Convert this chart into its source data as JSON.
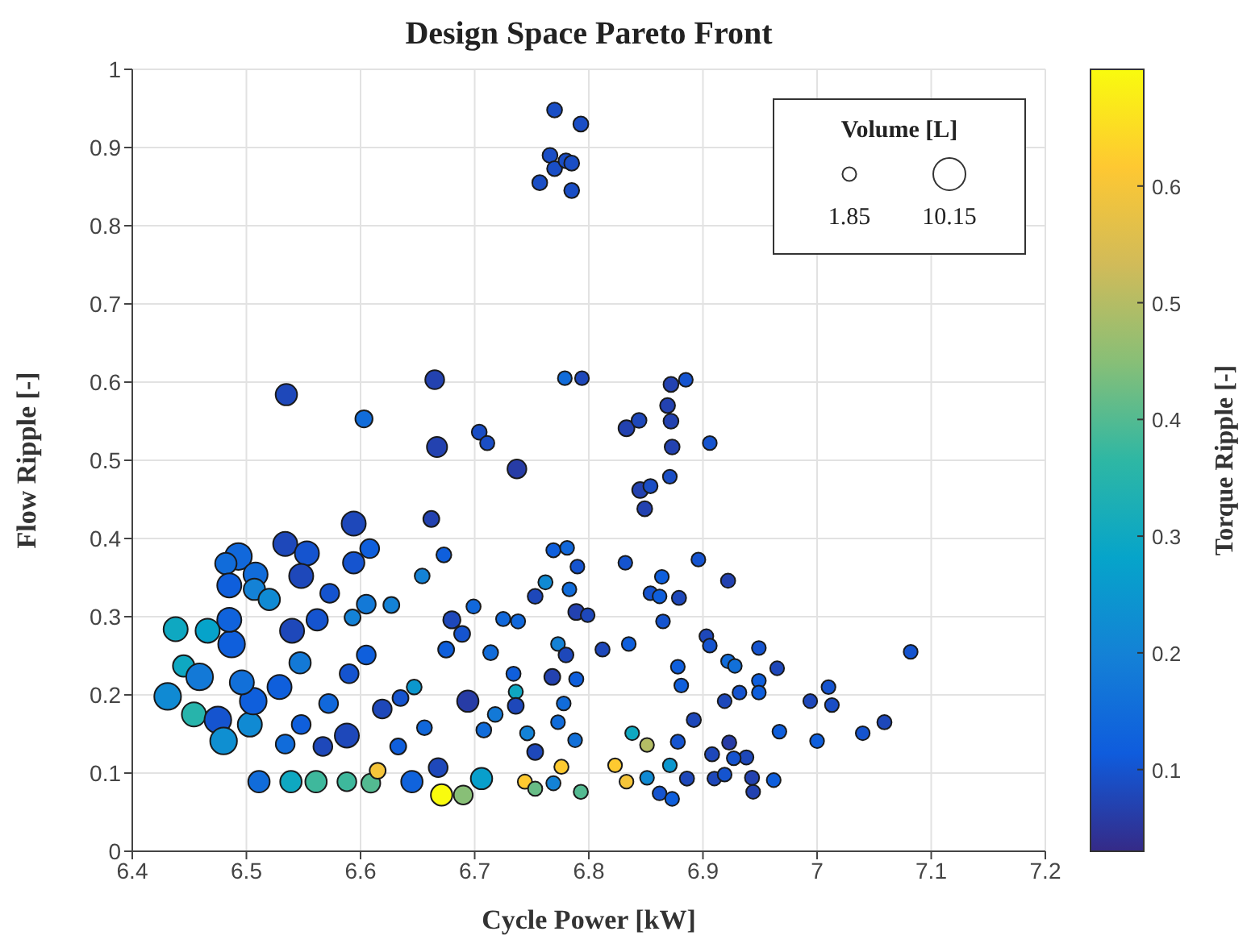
{
  "chart_data": {
    "type": "bubble",
    "title": "Design Space Pareto Front",
    "xlabel": "Cycle Power [kW]",
    "ylabel": "Flow Ripple [-]",
    "clabel": "Torque Ripple [-]",
    "legend_title": "Volume [L]",
    "x": [
      6.77,
      6.793,
      6.766,
      6.77,
      6.78,
      6.785,
      6.757,
      6.785,
      6.535,
      6.603,
      6.665,
      6.667,
      6.704,
      6.711,
      6.737,
      6.594,
      6.662,
      6.673,
      6.608,
      6.594,
      6.534,
      6.553,
      6.493,
      6.482,
      6.548,
      6.508,
      6.485,
      6.507,
      6.52,
      6.573,
      6.654,
      6.627,
      6.605,
      6.593,
      6.438,
      6.466,
      6.445,
      6.459,
      6.431,
      6.454,
      6.475,
      6.48,
      6.503,
      6.506,
      6.496,
      6.487,
      6.485,
      6.54,
      6.562,
      6.547,
      6.529,
      6.511,
      6.539,
      6.561,
      6.588,
      6.609,
      6.615,
      6.645,
      6.671,
      6.69,
      6.706,
      6.668,
      6.588,
      6.572,
      6.59,
      6.605,
      6.619,
      6.635,
      6.647,
      6.694,
      6.675,
      6.689,
      6.68,
      6.699,
      6.725,
      6.738,
      6.714,
      6.734,
      6.736,
      6.736,
      6.718,
      6.746,
      6.753,
      6.708,
      6.656,
      6.633,
      6.567,
      6.548,
      6.534,
      6.753,
      6.769,
      6.781,
      6.762,
      6.79,
      6.783,
      6.773,
      6.78,
      6.789,
      6.799,
      6.768,
      6.789,
      6.778,
      6.773,
      6.788,
      6.776,
      6.744,
      6.753,
      6.769,
      6.793,
      6.779,
      6.794,
      6.812,
      6.872,
      6.885,
      6.869,
      6.872,
      6.833,
      6.844,
      6.873,
      6.906,
      6.871,
      6.845,
      6.854,
      6.849,
      6.832,
      6.896,
      6.864,
      6.854,
      6.862,
      6.879,
      6.922,
      6.865,
      6.835,
      6.903,
      6.906,
      6.949,
      6.922,
      6.928,
      6.878,
      6.881,
      6.965,
      6.949,
      6.949,
      6.932,
      6.919,
      7.082,
      6.994,
      7.01,
      7.013,
      7.059,
      7.04,
      7.0,
      6.967,
      6.892,
      6.878,
      6.923,
      6.908,
      6.938,
      6.927,
      6.886,
      6.91,
      6.919,
      6.943,
      6.944,
      6.962,
      6.862,
      6.873,
      6.851,
      6.838,
      6.871,
      6.851,
      6.833,
      6.823
    ],
    "values": [
      0.948,
      0.93,
      0.89,
      0.873,
      0.883,
      0.88,
      0.855,
      0.845,
      0.584,
      0.553,
      0.603,
      0.517,
      0.536,
      0.522,
      0.489,
      0.419,
      0.425,
      0.379,
      0.387,
      0.369,
      0.393,
      0.381,
      0.377,
      0.368,
      0.352,
      0.354,
      0.34,
      0.335,
      0.322,
      0.33,
      0.352,
      0.315,
      0.316,
      0.299,
      0.284,
      0.282,
      0.237,
      0.223,
      0.198,
      0.175,
      0.168,
      0.141,
      0.162,
      0.192,
      0.216,
      0.265,
      0.296,
      0.282,
      0.296,
      0.241,
      0.21,
      0.089,
      0.089,
      0.089,
      0.089,
      0.087,
      0.103,
      0.089,
      0.072,
      0.072,
      0.093,
      0.107,
      0.148,
      0.189,
      0.227,
      0.251,
      0.182,
      0.196,
      0.21,
      0.192,
      0.258,
      0.278,
      0.296,
      0.313,
      0.297,
      0.294,
      0.254,
      0.227,
      0.204,
      0.186,
      0.175,
      0.151,
      0.127,
      0.155,
      0.158,
      0.134,
      0.134,
      0.162,
      0.137,
      0.326,
      0.385,
      0.388,
      0.344,
      0.364,
      0.335,
      0.265,
      0.251,
      0.306,
      0.302,
      0.223,
      0.22,
      0.189,
      0.165,
      0.142,
      0.108,
      0.089,
      0.08,
      0.087,
      0.076,
      0.605,
      0.605,
      0.258,
      0.597,
      0.603,
      0.57,
      0.55,
      0.541,
      0.551,
      0.517,
      0.522,
      0.479,
      0.462,
      0.467,
      0.438,
      0.369,
      0.373,
      0.351,
      0.33,
      0.326,
      0.324,
      0.346,
      0.294,
      0.265,
      0.275,
      0.263,
      0.26,
      0.243,
      0.237,
      0.236,
      0.212,
      0.234,
      0.218,
      0.203,
      0.203,
      0.192,
      0.255,
      0.192,
      0.21,
      0.187,
      0.165,
      0.151,
      0.141,
      0.153,
      0.168,
      0.14,
      0.139,
      0.124,
      0.12,
      0.119,
      0.093,
      0.093,
      0.098,
      0.094,
      0.076,
      0.091,
      0.074,
      0.067,
      0.136,
      0.151,
      0.11,
      0.094,
      0.089,
      0.11
    ],
    "sizes": [
      2.2,
      2.2,
      2.2,
      2.2,
      2.2,
      2.2,
      2.2,
      2.2,
      4.5,
      2.9,
      3.5,
      4.0,
      2.2,
      2.0,
      3.5,
      5.7,
      2.5,
      2.2,
      3.5,
      4.5,
      5.7,
      5.7,
      7.0,
      4.5,
      5.7,
      5.7,
      5.7,
      4.5,
      4.5,
      3.5,
      2.2,
      2.5,
      3.5,
      2.5,
      5.7,
      5.7,
      4.5,
      7.0,
      7.0,
      5.7,
      7.0,
      7.0,
      5.7,
      7.0,
      5.7,
      7.0,
      5.7,
      5.7,
      4.5,
      4.5,
      5.7,
      4.5,
      4.5,
      4.5,
      3.5,
      3.5,
      2.5,
      4.5,
      4.5,
      3.5,
      4.5,
      3.5,
      5.7,
      3.5,
      3.5,
      3.5,
      3.5,
      2.5,
      2.2,
      4.5,
      2.5,
      2.5,
      2.9,
      2.0,
      2.0,
      2.0,
      2.2,
      2.0,
      2.0,
      2.5,
      2.2,
      2.0,
      2.5,
      2.2,
      2.2,
      2.5,
      3.5,
      3.5,
      3.5,
      2.2,
      2.0,
      1.9,
      2.0,
      1.9,
      1.9,
      1.9,
      2.2,
      2.5,
      1.9,
      2.5,
      2.0,
      1.9,
      1.9,
      1.9,
      2.0,
      2.0,
      2.0,
      2.0,
      2.0,
      1.9,
      1.9,
      2.0,
      2.2,
      1.9,
      2.2,
      2.2,
      2.5,
      2.2,
      2.2,
      1.9,
      1.9,
      2.5,
      2.0,
      2.2,
      1.9,
      1.9,
      1.9,
      1.9,
      1.9,
      2.0,
      2.0,
      1.9,
      1.9,
      1.9,
      1.9,
      1.9,
      1.9,
      1.85,
      1.9,
      1.9,
      1.9,
      1.9,
      1.9,
      1.9,
      1.9,
      1.9,
      1.9,
      1.9,
      1.9,
      2.0,
      1.9,
      1.9,
      1.9,
      2.0,
      2.0,
      2.0,
      2.0,
      2.0,
      1.9,
      2.0,
      1.9,
      1.9,
      2.0,
      1.9,
      1.9,
      1.9,
      1.9,
      1.9,
      1.9,
      1.9,
      1.9,
      1.9,
      1.9
    ],
    "cvalues": [
      0.09,
      0.09,
      0.09,
      0.09,
      0.09,
      0.09,
      0.09,
      0.09,
      0.08,
      0.15,
      0.07,
      0.07,
      0.09,
      0.09,
      0.06,
      0.08,
      0.07,
      0.12,
      0.12,
      0.1,
      0.08,
      0.1,
      0.14,
      0.15,
      0.08,
      0.15,
      0.12,
      0.2,
      0.22,
      0.1,
      0.2,
      0.2,
      0.18,
      0.2,
      0.3,
      0.28,
      0.3,
      0.18,
      0.22,
      0.35,
      0.1,
      0.23,
      0.22,
      0.12,
      0.16,
      0.12,
      0.13,
      0.08,
      0.1,
      0.18,
      0.12,
      0.15,
      0.3,
      0.38,
      0.38,
      0.4,
      0.6,
      0.13,
      0.7,
      0.45,
      0.27,
      0.08,
      0.08,
      0.14,
      0.1,
      0.12,
      0.08,
      0.1,
      0.25,
      0.06,
      0.12,
      0.1,
      0.08,
      0.14,
      0.14,
      0.14,
      0.15,
      0.12,
      0.3,
      0.08,
      0.18,
      0.2,
      0.08,
      0.15,
      0.14,
      0.12,
      0.08,
      0.12,
      0.15,
      0.08,
      0.12,
      0.14,
      0.22,
      0.1,
      0.15,
      0.2,
      0.08,
      0.07,
      0.08,
      0.07,
      0.12,
      0.15,
      0.15,
      0.16,
      0.62,
      0.62,
      0.42,
      0.2,
      0.4,
      0.15,
      0.08,
      0.08,
      0.07,
      0.1,
      0.07,
      0.07,
      0.07,
      0.08,
      0.07,
      0.1,
      0.09,
      0.07,
      0.09,
      0.07,
      0.1,
      0.1,
      0.12,
      0.1,
      0.12,
      0.08,
      0.07,
      0.1,
      0.12,
      0.08,
      0.1,
      0.1,
      0.15,
      0.16,
      0.12,
      0.12,
      0.08,
      0.12,
      0.12,
      0.1,
      0.08,
      0.1,
      0.08,
      0.1,
      0.09,
      0.08,
      0.1,
      0.12,
      0.12,
      0.08,
      0.1,
      0.06,
      0.08,
      0.08,
      0.1,
      0.08,
      0.08,
      0.1,
      0.07,
      0.07,
      0.12,
      0.1,
      0.12,
      0.5,
      0.3,
      0.25,
      0.22,
      0.6,
      0.62
    ],
    "size_legend": [
      1.85,
      10.15
    ],
    "xlim": [
      6.4,
      7.2
    ],
    "xticks": [
      6.4,
      6.5,
      6.6,
      6.7,
      6.8,
      6.9,
      7,
      7.1,
      7.2
    ],
    "ylim": [
      0,
      1
    ],
    "yticks": [
      0,
      0.1,
      0.2,
      0.3,
      0.4,
      0.5,
      0.6,
      0.7,
      0.8,
      0.9,
      1
    ],
    "clim": [
      0.03,
      0.7
    ],
    "cticks": [
      0.1,
      0.2,
      0.3,
      0.4,
      0.5,
      0.6
    ],
    "grid": true
  }
}
